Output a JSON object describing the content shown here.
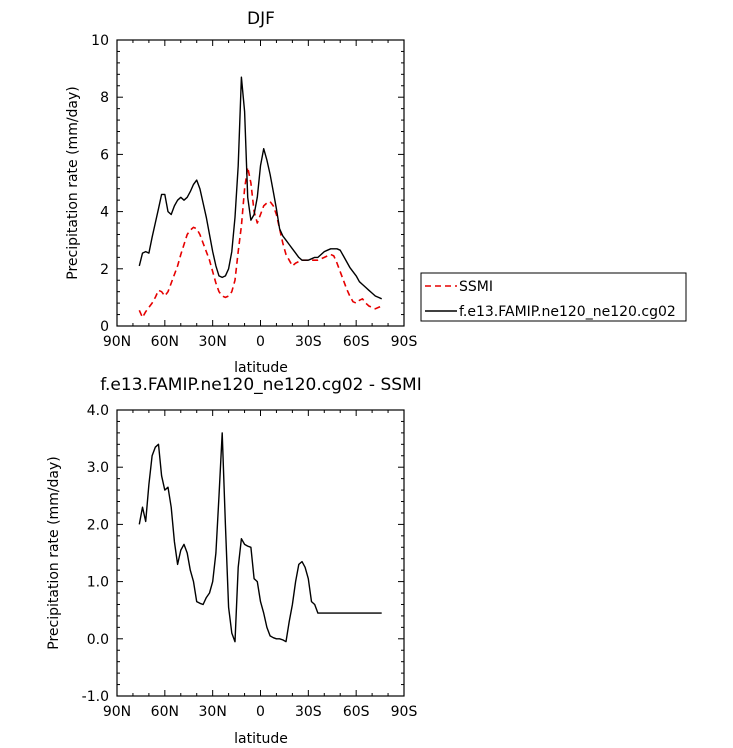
{
  "colors": {
    "ssmi": "#e60000",
    "model": "#000000"
  },
  "chart_data": [
    {
      "type": "line",
      "title": "DJF",
      "xlabel": "latitude",
      "ylabel": "Precipitation rate (mm/day)",
      "xlim": [
        -90,
        90
      ],
      "ylim": [
        0,
        10
      ],
      "xticks": [
        -90,
        -60,
        -30,
        0,
        30,
        60,
        90
      ],
      "xtick_labels": [
        "90N",
        "60N",
        "30N",
        "0",
        "30S",
        "60S",
        "90S"
      ],
      "yticks": [
        0,
        2,
        4,
        6,
        8,
        10
      ],
      "ytick_labels": [
        "0",
        "2",
        "4",
        "6",
        "8",
        "10"
      ],
      "legend": {
        "position": "right",
        "labels": [
          "SSMI",
          "f.e13.FAMIP.ne120_ne120.cg02"
        ]
      },
      "series": [
        {
          "name": "SSMI",
          "style": "dashed",
          "x": [
            -76,
            -74,
            -72,
            -70,
            -68,
            -66,
            -64,
            -62,
            -60,
            -58,
            -56,
            -54,
            -52,
            -50,
            -48,
            -46,
            -44,
            -42,
            -40,
            -38,
            -36,
            -34,
            -32,
            -30,
            -28,
            -26,
            -24,
            -22,
            -20,
            -18,
            -16,
            -14,
            -12,
            -10,
            -8,
            -6,
            -4,
            -2,
            0,
            2,
            4,
            6,
            8,
            10,
            12,
            14,
            16,
            18,
            20,
            22,
            24,
            26,
            28,
            30,
            32,
            34,
            36,
            38,
            40,
            42,
            44,
            46,
            48,
            50,
            52,
            54,
            56,
            58,
            60,
            62,
            64,
            66,
            68,
            70,
            72,
            74,
            76
          ],
          "values": [
            0.55,
            0.3,
            0.5,
            0.65,
            0.8,
            1.0,
            1.25,
            1.2,
            1.05,
            1.2,
            1.5,
            1.8,
            2.1,
            2.5,
            2.85,
            3.2,
            3.35,
            3.45,
            3.4,
            3.2,
            2.9,
            2.6,
            2.3,
            1.9,
            1.5,
            1.2,
            1.05,
            1.0,
            1.05,
            1.2,
            1.6,
            2.6,
            3.5,
            4.8,
            5.55,
            5.0,
            4.0,
            3.6,
            3.9,
            4.2,
            4.3,
            4.35,
            4.2,
            3.9,
            3.4,
            2.9,
            2.5,
            2.3,
            2.1,
            2.2,
            2.25,
            2.3,
            2.3,
            2.3,
            2.3,
            2.3,
            2.3,
            2.35,
            2.4,
            2.45,
            2.5,
            2.45,
            2.2,
            1.9,
            1.6,
            1.3,
            1.05,
            0.85,
            0.8,
            0.9,
            0.95,
            0.8,
            0.7,
            0.65,
            0.6,
            0.65,
            0.7
          ]
        },
        {
          "name": "f.e13.FAMIP.ne120_ne120.cg02",
          "style": "solid",
          "x": [
            -76,
            -74,
            -72,
            -70,
            -68,
            -66,
            -64,
            -62,
            -60,
            -58,
            -56,
            -54,
            -52,
            -50,
            -48,
            -46,
            -44,
            -42,
            -40,
            -38,
            -36,
            -34,
            -32,
            -30,
            -28,
            -26,
            -24,
            -22,
            -20,
            -18,
            -16,
            -14,
            -12,
            -10,
            -8,
            -6,
            -4,
            -2,
            0,
            2,
            4,
            6,
            8,
            10,
            12,
            14,
            16,
            18,
            20,
            22,
            24,
            26,
            28,
            30,
            32,
            34,
            36,
            38,
            40,
            42,
            44,
            46,
            48,
            50,
            52,
            54,
            56,
            58,
            60,
            62,
            64,
            66,
            68,
            70,
            72,
            74,
            76
          ],
          "values": [
            2.1,
            2.55,
            2.6,
            2.55,
            3.1,
            3.6,
            4.1,
            4.6,
            4.6,
            4.0,
            3.9,
            4.2,
            4.4,
            4.5,
            4.4,
            4.5,
            4.7,
            4.95,
            5.1,
            4.8,
            4.3,
            3.8,
            3.2,
            2.6,
            2.1,
            1.75,
            1.7,
            1.75,
            2.0,
            2.6,
            3.8,
            5.6,
            8.7,
            7.5,
            4.5,
            3.7,
            3.9,
            4.5,
            5.6,
            6.2,
            5.8,
            5.3,
            4.7,
            4.1,
            3.4,
            3.15,
            3.0,
            2.85,
            2.7,
            2.55,
            2.4,
            2.3,
            2.3,
            2.3,
            2.35,
            2.4,
            2.4,
            2.5,
            2.6,
            2.65,
            2.7,
            2.7,
            2.7,
            2.65,
            2.45,
            2.25,
            2.05,
            1.9,
            1.75,
            1.55,
            1.45,
            1.35,
            1.25,
            1.15,
            1.05,
            1.0,
            0.95
          ]
        }
      ]
    },
    {
      "type": "line",
      "title": "f.e13.FAMIP.ne120_ne120.cg02 - SSMI",
      "xlabel": "latitude",
      "ylabel": "Precipitation rate (mm/day)",
      "xlim": [
        -90,
        90
      ],
      "ylim": [
        -1,
        4
      ],
      "xticks": [
        -90,
        -60,
        -30,
        0,
        30,
        60,
        90
      ],
      "xtick_labels": [
        "90N",
        "60N",
        "30N",
        "0",
        "30S",
        "60S",
        "90S"
      ],
      "yticks": [
        -1,
        0,
        1,
        2,
        3,
        4
      ],
      "ytick_labels": [
        "-1.0",
        "0.0",
        "1.0",
        "2.0",
        "3.0",
        "4.0"
      ],
      "series": [
        {
          "name": "f.e13.FAMIP.ne120_ne120.cg02 - SSMI",
          "style": "solid",
          "x": [
            -76,
            -74,
            -72,
            -70,
            -68,
            -66,
            -64,
            -62,
            -60,
            -58,
            -56,
            -54,
            -52,
            -50,
            -48,
            -46,
            -44,
            -42,
            -40,
            -38,
            -36,
            -34,
            -32,
            -30,
            -28,
            -26,
            -24,
            -22,
            -20,
            -18,
            -16,
            -14,
            -12,
            -10,
            -8,
            -6,
            -4,
            -2,
            0,
            2,
            4,
            6,
            8,
            10,
            12,
            14,
            16,
            18,
            20,
            22,
            24,
            26,
            28,
            30,
            32,
            34,
            36,
            38,
            40,
            42,
            44,
            46,
            48,
            50,
            52,
            54,
            56,
            58,
            60,
            62,
            64,
            66,
            68,
            70,
            72,
            74,
            76
          ],
          "values": [
            2.0,
            2.3,
            2.05,
            2.7,
            3.2,
            3.35,
            3.4,
            2.85,
            2.6,
            2.65,
            2.3,
            1.7,
            1.3,
            1.55,
            1.65,
            1.5,
            1.2,
            1.0,
            0.65,
            0.62,
            0.6,
            0.72,
            0.8,
            1.0,
            1.5,
            2.5,
            3.6,
            2.0,
            0.55,
            0.1,
            -0.05,
            1.25,
            1.75,
            1.65,
            1.62,
            1.6,
            1.05,
            1.0,
            0.65,
            0.45,
            0.2,
            0.05,
            0.02,
            0.0,
            0.0,
            -0.02,
            -0.05,
            0.3,
            0.6,
            1.0,
            1.3,
            1.35,
            1.25,
            1.05,
            0.65,
            0.6,
            0.45,
            0.45,
            0.45,
            0.45,
            0.45,
            0.45,
            0.45,
            0.45,
            0.45,
            0.45,
            0.45,
            0.45,
            0.45,
            0.45,
            0.45,
            0.45,
            0.45,
            0.45,
            0.45,
            0.45,
            0.45
          ]
        }
      ]
    }
  ]
}
